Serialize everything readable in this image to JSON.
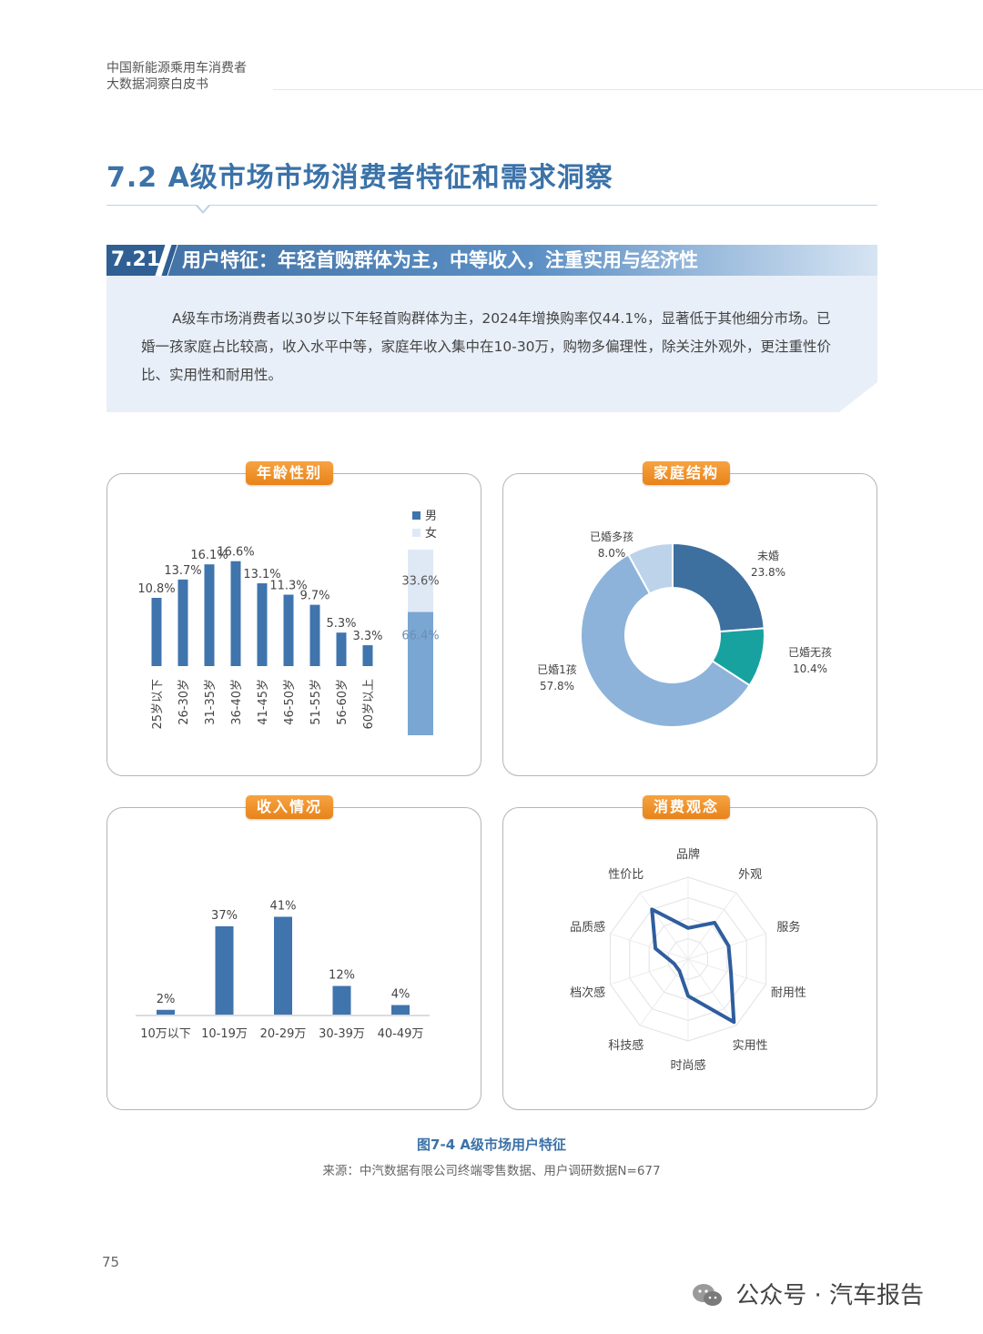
{
  "header": {
    "line1": "中国新能源乘用车消费者",
    "line2": "大数据洞察白皮书"
  },
  "section": {
    "title": "7.2 A级市场市场消费者特征和需求洞察",
    "sub_number": "7.21",
    "sub_title": "用户特征：年轻首购群体为主，中等收入，注重实用与经济性",
    "summary": "A级车市场消费者以30岁以下年轻首购群体为主，2024年增换购率仅44.1%，显著低于其他细分市场。已婚一孩家庭占比较高，收入水平中等，家庭年收入集中在10-30万，购物多偏理性，除关注外观外，更注重性价比、实用性和耐用性。"
  },
  "colors": {
    "primary_blue": "#3f74ad",
    "light_blue": "#dfe9f5",
    "mid_blue": "#8fb4da",
    "teal": "#17a2a0",
    "orange": "#ee8e22",
    "radar_line": "#2f5d9e"
  },
  "chart_data": [
    {
      "type": "bar",
      "panel_title": "年龄性别",
      "categories": [
        "25岁以下",
        "26-30岁",
        "31-35岁",
        "36-40岁",
        "41-45岁",
        "46-50岁",
        "51-55岁",
        "56-60岁",
        "60岁以上"
      ],
      "values": [
        10.8,
        13.7,
        16.1,
        16.6,
        13.1,
        11.3,
        9.7,
        5.3,
        3.3
      ],
      "value_labels": [
        "10.8%",
        "13.7%",
        "16.1%",
        "16.6%",
        "13.1%",
        "11.3%",
        "9.7%",
        "5.3%",
        "3.3%"
      ],
      "ylim": [
        0,
        18
      ],
      "grid": false,
      "gender_stack": {
        "legend": [
          {
            "name": "男",
            "color": "#7aa6d4"
          },
          {
            "name": "女",
            "color": "#dfe9f5"
          }
        ],
        "male": 66.4,
        "female": 33.6,
        "male_label": "66.4%",
        "female_label": "33.6%"
      }
    },
    {
      "type": "pie",
      "panel_title": "家庭结构",
      "donut": true,
      "slices": [
        {
          "name": "未婚",
          "value": 23.8,
          "label": "23.8%",
          "color": "#3d6f9f"
        },
        {
          "name": "已婚无孩",
          "value": 10.4,
          "label": "10.4%",
          "color": "#17a2a0"
        },
        {
          "name": "已婚1孩",
          "value": 57.8,
          "label": "57.8%",
          "color": "#8db3da"
        },
        {
          "name": "已婚多孩",
          "value": 8.0,
          "label": "8.0%",
          "color": "#bcd3ea"
        }
      ]
    },
    {
      "type": "bar",
      "panel_title": "收入情况",
      "categories": [
        "10万以下",
        "10-19万",
        "20-29万",
        "30-39万",
        "40-49万"
      ],
      "values": [
        2,
        37,
        41,
        12,
        4
      ],
      "value_labels": [
        "2%",
        "37%",
        "41%",
        "12%",
        "4%"
      ],
      "ylim": [
        0,
        45
      ],
      "grid": false
    },
    {
      "type": "radar",
      "panel_title": "消费观念",
      "axes": [
        "品牌",
        "外观",
        "服务",
        "耐用性",
        "实用性",
        "时尚感",
        "科技感",
        "档次感",
        "品质感",
        "性价比"
      ],
      "values": [
        0.38,
        0.55,
        0.52,
        0.55,
        0.95,
        0.45,
        0.18,
        0.18,
        0.42,
        0.75
      ],
      "rlim": [
        0,
        1
      ],
      "rings": 4
    }
  ],
  "figure": {
    "caption": "图7-4 A级市场用户特征",
    "source": "来源：中汽数据有限公司终端零售数据、用户调研数据N=677"
  },
  "page_number": "75",
  "watermark": "公众号 · 汽车报告"
}
